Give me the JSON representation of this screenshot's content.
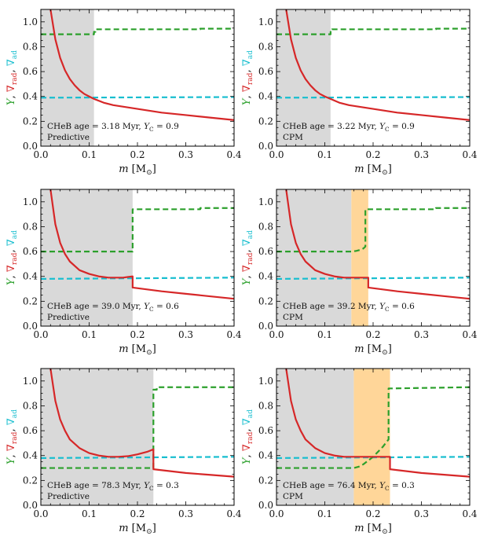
{
  "chart_data": [
    {
      "type": "line",
      "panel": "row1-left",
      "annotation_line1": "CHeB age = 3.18 Myr, Y_C = 0.9",
      "annotation_line2": "Predictive",
      "xlabel": "m [M⊙]",
      "ylabel": "Y, ∇rad, ∇ad",
      "xlim": [
        0.0,
        0.4
      ],
      "ylim": [
        0.0,
        1.1
      ],
      "xticks": [
        "0.0",
        "0.1",
        "0.2",
        "0.3",
        "0.4"
      ],
      "yticks": [
        "0.0",
        "0.2",
        "0.4",
        "0.6",
        "0.8",
        "1.0"
      ],
      "convective_core": [
        0.0,
        0.11
      ],
      "overshoot_zone": null,
      "colors": {
        "Y": "#2ca02c",
        "nabla_rad": "#d62728",
        "nabla_ad": "#17becf",
        "core": "#d9d9d9",
        "overshoot": "#ffd699"
      },
      "series": [
        {
          "name": "Y",
          "style": "dashed",
          "x": [
            0,
            0.11,
            0.11,
            0.113,
            0.113,
            0.33,
            0.33,
            0.4
          ],
          "y": [
            0.9,
            0.9,
            0.92,
            0.92,
            0.94,
            0.94,
            0.945,
            0.945
          ]
        },
        {
          "name": "nabla_rad",
          "style": "solid",
          "x": [
            0.02,
            0.03,
            0.04,
            0.05,
            0.06,
            0.07,
            0.08,
            0.09,
            0.1,
            0.11,
            0.13,
            0.15,
            0.2,
            0.25,
            0.3,
            0.35,
            0.4
          ],
          "y": [
            1.1,
            0.86,
            0.71,
            0.61,
            0.54,
            0.49,
            0.45,
            0.42,
            0.4,
            0.38,
            0.35,
            0.33,
            0.3,
            0.27,
            0.25,
            0.23,
            0.21
          ]
        },
        {
          "name": "nabla_ad",
          "style": "dashed",
          "x": [
            0,
            0.4
          ],
          "y": [
            0.39,
            0.395
          ]
        }
      ]
    },
    {
      "type": "line",
      "panel": "row1-right",
      "annotation_line1": "CHeB age = 3.22 Myr, Y_C = 0.9",
      "annotation_line2": "CPM",
      "xlabel": "m [M⊙]",
      "ylabel": "Y, ∇rad, ∇ad",
      "xlim": [
        0.0,
        0.4
      ],
      "ylim": [
        0.0,
        1.1
      ],
      "xticks": [
        "0.0",
        "0.1",
        "0.2",
        "0.3",
        "0.4"
      ],
      "yticks": [
        "0.0",
        "0.2",
        "0.4",
        "0.6",
        "0.8",
        "1.0"
      ],
      "convective_core": [
        0.0,
        0.112
      ],
      "overshoot_zone": null,
      "colors": {
        "Y": "#2ca02c",
        "nabla_rad": "#d62728",
        "nabla_ad": "#17becf",
        "core": "#d9d9d9",
        "overshoot": "#ffd699"
      },
      "series": [
        {
          "name": "Y",
          "style": "dashed",
          "x": [
            0,
            0.112,
            0.112,
            0.115,
            0.115,
            0.33,
            0.33,
            0.4
          ],
          "y": [
            0.9,
            0.9,
            0.92,
            0.92,
            0.94,
            0.94,
            0.945,
            0.945
          ]
        },
        {
          "name": "nabla_rad",
          "style": "solid",
          "x": [
            0.02,
            0.03,
            0.04,
            0.05,
            0.06,
            0.07,
            0.08,
            0.09,
            0.1,
            0.112,
            0.13,
            0.15,
            0.2,
            0.25,
            0.3,
            0.35,
            0.4
          ],
          "y": [
            1.1,
            0.86,
            0.71,
            0.61,
            0.54,
            0.49,
            0.45,
            0.42,
            0.4,
            0.38,
            0.35,
            0.33,
            0.3,
            0.27,
            0.25,
            0.23,
            0.21
          ]
        },
        {
          "name": "nabla_ad",
          "style": "dashed",
          "x": [
            0,
            0.4
          ],
          "y": [
            0.39,
            0.395
          ]
        }
      ]
    },
    {
      "type": "line",
      "panel": "row2-left",
      "annotation_line1": "CHeB age = 39.0 Myr, Y_C = 0.6",
      "annotation_line2": "Predictive",
      "xlabel": "m [M⊙]",
      "ylabel": "Y, ∇rad, ∇ad",
      "xlim": [
        0.0,
        0.4
      ],
      "ylim": [
        0.0,
        1.1
      ],
      "xticks": [
        "0.0",
        "0.1",
        "0.2",
        "0.3",
        "0.4"
      ],
      "yticks": [
        "0.0",
        "0.2",
        "0.4",
        "0.6",
        "0.8",
        "1.0"
      ],
      "convective_core": [
        0.0,
        0.19
      ],
      "overshoot_zone": null,
      "colors": {
        "Y": "#2ca02c",
        "nabla_rad": "#d62728",
        "nabla_ad": "#17becf",
        "core": "#d9d9d9",
        "overshoot": "#ffd699"
      },
      "series": [
        {
          "name": "Y",
          "style": "dashed",
          "x": [
            0,
            0.19,
            0.19,
            0.33,
            0.33,
            0.4
          ],
          "y": [
            0.6,
            0.6,
            0.94,
            0.94,
            0.95,
            0.95
          ]
        },
        {
          "name": "nabla_rad",
          "style": "solid",
          "x": [
            0.02,
            0.03,
            0.04,
            0.05,
            0.06,
            0.08,
            0.1,
            0.12,
            0.14,
            0.15,
            0.16,
            0.17,
            0.18,
            0.19,
            0.19,
            0.25,
            0.3,
            0.35,
            0.4
          ],
          "y": [
            1.1,
            0.82,
            0.67,
            0.58,
            0.52,
            0.45,
            0.42,
            0.4,
            0.39,
            0.39,
            0.39,
            0.39,
            0.395,
            0.4,
            0.31,
            0.28,
            0.26,
            0.24,
            0.22
          ]
        },
        {
          "name": "nabla_ad",
          "style": "dashed",
          "x": [
            0,
            0.4
          ],
          "y": [
            0.38,
            0.39
          ]
        }
      ]
    },
    {
      "type": "line",
      "panel": "row2-right",
      "annotation_line1": "CHeB age = 39.2 Myr, Y_C = 0.6",
      "annotation_line2": "CPM",
      "xlabel": "m [M⊙]",
      "ylabel": "Y, ∇rad, ∇ad",
      "xlim": [
        0.0,
        0.4
      ],
      "ylim": [
        0.0,
        1.1
      ],
      "xticks": [
        "0.0",
        "0.1",
        "0.2",
        "0.3",
        "0.4"
      ],
      "yticks": [
        "0.0",
        "0.2",
        "0.4",
        "0.6",
        "0.8",
        "1.0"
      ],
      "convective_core": [
        0.0,
        0.155
      ],
      "overshoot_zone": [
        0.155,
        0.19
      ],
      "colors": {
        "Y": "#2ca02c",
        "nabla_rad": "#d62728",
        "nabla_ad": "#17becf",
        "core": "#d9d9d9",
        "overshoot": "#ffd699"
      },
      "series": [
        {
          "name": "Y",
          "style": "dashed",
          "x": [
            0,
            0.155,
            0.165,
            0.175,
            0.18,
            0.184,
            0.184,
            0.19,
            0.33,
            0.33,
            0.4
          ],
          "y": [
            0.6,
            0.6,
            0.605,
            0.615,
            0.625,
            0.64,
            0.94,
            0.94,
            0.94,
            0.95,
            0.95
          ]
        },
        {
          "name": "nabla_rad",
          "style": "solid",
          "x": [
            0.02,
            0.03,
            0.04,
            0.05,
            0.06,
            0.08,
            0.1,
            0.12,
            0.14,
            0.155,
            0.19,
            0.19,
            0.25,
            0.3,
            0.35,
            0.4
          ],
          "y": [
            1.1,
            0.82,
            0.67,
            0.58,
            0.52,
            0.45,
            0.42,
            0.4,
            0.39,
            0.39,
            0.39,
            0.31,
            0.28,
            0.26,
            0.24,
            0.22
          ]
        },
        {
          "name": "nabla_ad",
          "style": "dashed",
          "x": [
            0,
            0.4
          ],
          "y": [
            0.38,
            0.39
          ]
        }
      ]
    },
    {
      "type": "line",
      "panel": "row3-left",
      "annotation_line1": "CHeB age = 78.3 Myr, Y_C = 0.3",
      "annotation_line2": "Predictive",
      "xlabel": "m [M⊙]",
      "ylabel": "Y, ∇rad, ∇ad",
      "xlim": [
        0.0,
        0.4
      ],
      "ylim": [
        0.0,
        1.1
      ],
      "xticks": [
        "0.0",
        "0.1",
        "0.2",
        "0.3",
        "0.4"
      ],
      "yticks": [
        "0.0",
        "0.2",
        "0.4",
        "0.6",
        "0.8",
        "1.0"
      ],
      "convective_core": [
        0.0,
        0.233
      ],
      "overshoot_zone": null,
      "colors": {
        "Y": "#2ca02c",
        "nabla_rad": "#d62728",
        "nabla_ad": "#17becf",
        "core": "#d9d9d9",
        "overshoot": "#ffd699"
      },
      "series": [
        {
          "name": "Y",
          "style": "dashed",
          "x": [
            0,
            0.233,
            0.233,
            0.24,
            0.24,
            0.4
          ],
          "y": [
            0.3,
            0.3,
            0.93,
            0.93,
            0.95,
            0.95
          ]
        },
        {
          "name": "nabla_rad",
          "style": "solid",
          "x": [
            0.02,
            0.03,
            0.04,
            0.05,
            0.06,
            0.08,
            0.1,
            0.12,
            0.14,
            0.16,
            0.18,
            0.2,
            0.22,
            0.233,
            0.233,
            0.3,
            0.35,
            0.4
          ],
          "y": [
            1.1,
            0.84,
            0.69,
            0.6,
            0.53,
            0.46,
            0.42,
            0.4,
            0.39,
            0.39,
            0.395,
            0.41,
            0.43,
            0.45,
            0.29,
            0.26,
            0.245,
            0.23
          ]
        },
        {
          "name": "nabla_ad",
          "style": "dashed",
          "x": [
            0,
            0.4
          ],
          "y": [
            0.38,
            0.39
          ]
        }
      ]
    },
    {
      "type": "line",
      "panel": "row3-right",
      "annotation_line1": "CHeB age = 76.4 Myr, Y_C = 0.3",
      "annotation_line2": "CPM",
      "xlabel": "m [M⊙]",
      "ylabel": "Y, ∇rad, ∇ad",
      "xlim": [
        0.0,
        0.4
      ],
      "ylim": [
        0.0,
        1.1
      ],
      "xticks": [
        "0.0",
        "0.1",
        "0.2",
        "0.3",
        "0.4"
      ],
      "yticks": [
        "0.0",
        "0.2",
        "0.4",
        "0.6",
        "0.8",
        "1.0"
      ],
      "convective_core": [
        0.0,
        0.16
      ],
      "overshoot_zone": [
        0.16,
        0.235
      ],
      "colors": {
        "Y": "#2ca02c",
        "nabla_rad": "#d62728",
        "nabla_ad": "#17becf",
        "core": "#d9d9d9",
        "overshoot": "#ffd699"
      },
      "series": [
        {
          "name": "Y",
          "style": "dashed",
          "x": [
            0,
            0.16,
            0.17,
            0.18,
            0.19,
            0.2,
            0.21,
            0.22,
            0.232,
            0.232,
            0.24,
            0.4
          ],
          "y": [
            0.3,
            0.3,
            0.31,
            0.33,
            0.36,
            0.39,
            0.43,
            0.47,
            0.53,
            0.94,
            0.94,
            0.95
          ]
        },
        {
          "name": "nabla_rad",
          "style": "solid",
          "x": [
            0.02,
            0.03,
            0.04,
            0.05,
            0.06,
            0.08,
            0.1,
            0.12,
            0.14,
            0.16,
            0.235,
            0.235,
            0.3,
            0.35,
            0.4
          ],
          "y": [
            1.1,
            0.84,
            0.69,
            0.6,
            0.53,
            0.46,
            0.42,
            0.4,
            0.39,
            0.39,
            0.39,
            0.29,
            0.26,
            0.245,
            0.23
          ]
        },
        {
          "name": "nabla_ad",
          "style": "dashed",
          "x": [
            0,
            0.4
          ],
          "y": [
            0.38,
            0.39
          ]
        }
      ]
    }
  ]
}
